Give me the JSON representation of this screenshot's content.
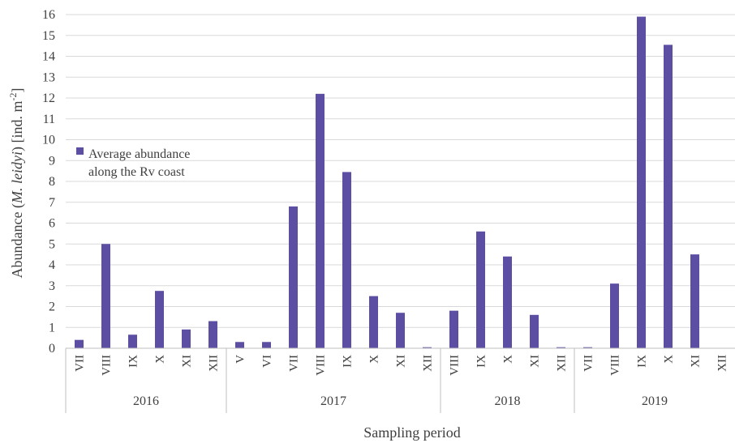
{
  "chart_data": {
    "type": "bar",
    "title": "",
    "xlabel": "Sampling period",
    "ylabel_parts": {
      "prefix": "Abundance (",
      "italic": "M. leidyi",
      "suffix": ") [ind. m",
      "superscript": "-2",
      "end": "]"
    },
    "ylim": [
      0,
      16
    ],
    "yticks": [
      0,
      1,
      2,
      3,
      4,
      5,
      6,
      7,
      8,
      9,
      10,
      11,
      12,
      13,
      14,
      15,
      16
    ],
    "grid": true,
    "legend": {
      "placement": "upper-left",
      "lines": [
        "Average abundance",
        "along the Rv coast"
      ],
      "color": "#5b4ea3"
    },
    "series": [
      {
        "color": "#5b4ea3",
        "values": [
          0.4,
          5.0,
          0.65,
          2.75,
          0.9,
          1.3,
          0.3,
          0.3,
          6.8,
          12.2,
          8.45,
          2.5,
          1.7,
          0.05,
          1.8,
          5.6,
          4.4,
          1.6,
          0.05,
          0.05,
          3.1,
          15.9,
          14.55,
          4.5,
          0.0
        ]
      }
    ],
    "categories": [
      "VII",
      "VIII",
      "IX",
      "X",
      "XI",
      "XII",
      "V",
      "VI",
      "VII",
      "VIII",
      "IX",
      "X",
      "XI",
      "XII",
      "VIII",
      "IX",
      "X",
      "XI",
      "XII",
      "VII",
      "VIII",
      "IX",
      "X",
      "XI",
      "XII"
    ],
    "groups": [
      {
        "label": "2016",
        "start": 0,
        "count": 6
      },
      {
        "label": "2017",
        "start": 6,
        "count": 8
      },
      {
        "label": "2018",
        "start": 14,
        "count": 5
      },
      {
        "label": "2019",
        "start": 19,
        "count": 6
      }
    ]
  }
}
